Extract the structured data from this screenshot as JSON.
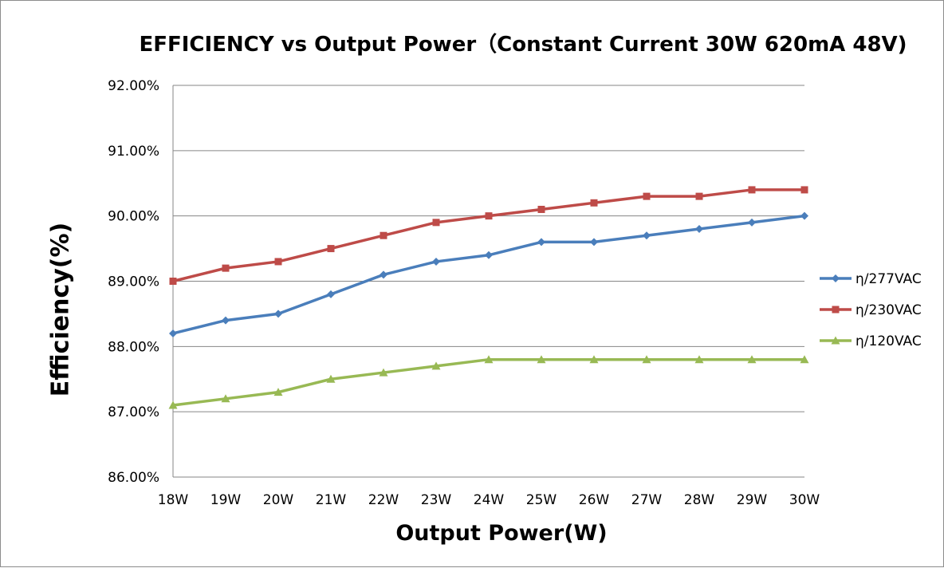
{
  "chart_data": {
    "type": "line",
    "title": "EFFICIENCY vs Output Power（Constant Current 30W 620mA 48V)",
    "xlabel": "Output Power(W)",
    "ylabel": "Efficiency(%)",
    "categories": [
      "18W",
      "19W",
      "20W",
      "21W",
      "22W",
      "23W",
      "24W",
      "25W",
      "26W",
      "27W",
      "28W",
      "29W",
      "30W"
    ],
    "ylim": [
      86,
      92
    ],
    "y_ticks": [
      "86.00%",
      "87.00%",
      "88.00%",
      "89.00%",
      "90.00%",
      "91.00%",
      "92.00%"
    ],
    "grid": true,
    "legend_position": "right",
    "series": [
      {
        "name": "η/277VAC",
        "color": "#4a7ebb",
        "marker": "diamond",
        "values": [
          88.2,
          88.4,
          88.5,
          88.8,
          89.1,
          89.3,
          89.4,
          89.6,
          89.6,
          89.7,
          89.8,
          89.9,
          90.0
        ]
      },
      {
        "name": "η/230VAC",
        "color": "#be4b48",
        "marker": "square",
        "values": [
          89.0,
          89.2,
          89.3,
          89.5,
          89.7,
          89.9,
          90.0,
          90.1,
          90.2,
          90.3,
          90.3,
          90.4,
          90.4
        ]
      },
      {
        "name": "η/120VAC",
        "color": "#98b954",
        "marker": "triangle",
        "values": [
          87.1,
          87.2,
          87.3,
          87.5,
          87.6,
          87.7,
          87.8,
          87.8,
          87.8,
          87.8,
          87.8,
          87.8,
          87.8
        ]
      }
    ]
  }
}
